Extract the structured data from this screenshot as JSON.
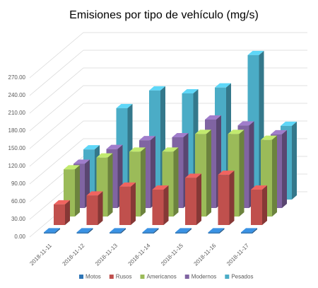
{
  "chart_data": {
    "type": "bar3d",
    "title": "Emisiones por tipo de vehículo (mg/s)",
    "categories": [
      "2018-11-11",
      "2018-11-12",
      "2018-11-13",
      "2018-11-14",
      "2018-11-15",
      "2018-11-16",
      "2018-11-17"
    ],
    "series": [
      {
        "name": "Motos",
        "color": "#2e75b6",
        "values": [
          2,
          2,
          2,
          2,
          2,
          2,
          2
        ]
      },
      {
        "name": "Rusos",
        "color": "#c0504d",
        "values": [
          35,
          50,
          65,
          60,
          80,
          85,
          60
        ]
      },
      {
        "name": "Americanos",
        "color": "#9bbb59",
        "values": [
          80,
          100,
          110,
          110,
          140,
          140,
          130
        ]
      },
      {
        "name": "Modernos",
        "color": "#8064a2",
        "values": [
          75,
          100,
          115,
          120,
          150,
          140,
          125
        ]
      },
      {
        "name": "Pesados",
        "color": "#4bacc6",
        "values": [
          85,
          155,
          185,
          180,
          190,
          245,
          125
        ]
      }
    ],
    "ylim": [
      0,
      300
    ],
    "yticks": [
      {
        "value": 0,
        "label": "0.00"
      },
      {
        "value": 30,
        "label": "30.00"
      },
      {
        "value": 60,
        "label": "60.00"
      },
      {
        "value": 90,
        "label": "90.00"
      },
      {
        "value": 120,
        "label": "120.00"
      },
      {
        "value": 150,
        "label": "150.00"
      },
      {
        "value": 180,
        "label": "180.00"
      },
      {
        "value": 210,
        "label": "210.00"
      },
      {
        "value": 240,
        "label": "240.00"
      },
      {
        "value": 270,
        "label": "270.00"
      }
    ],
    "grid": true,
    "legend": "bottom"
  }
}
